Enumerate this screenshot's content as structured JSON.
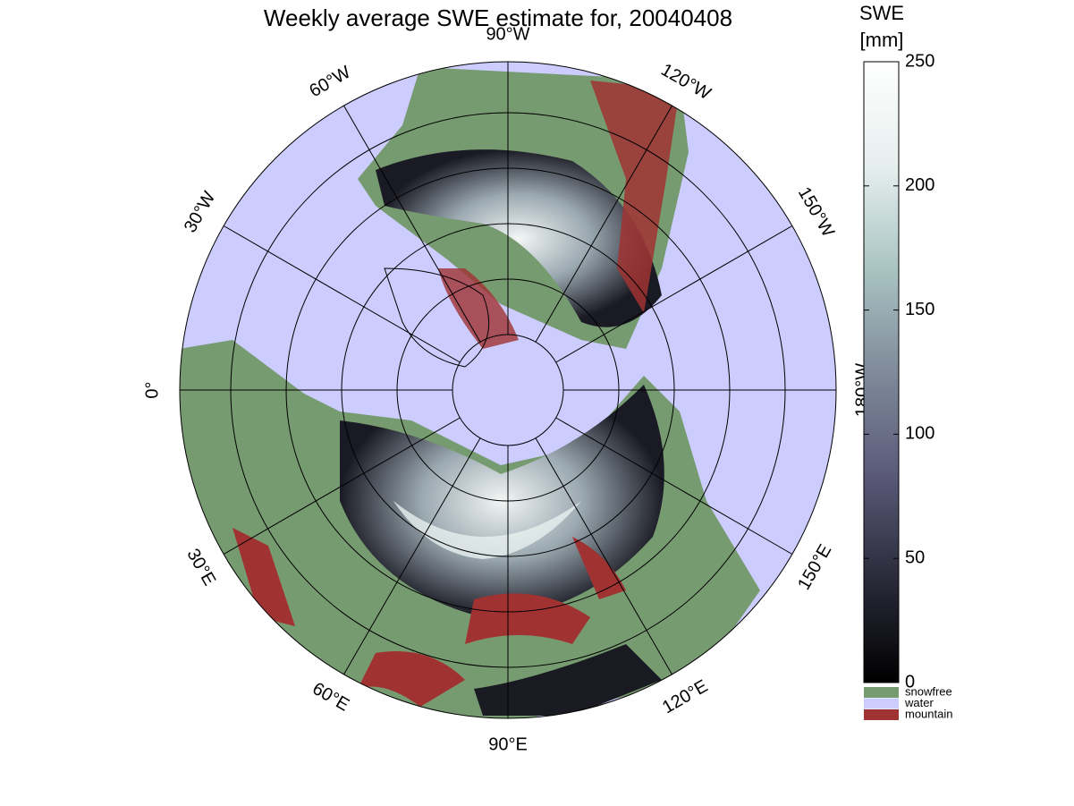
{
  "title": "Weekly average SWE estimate for, 20040408",
  "colorbar": {
    "label_lines": [
      "SWE",
      "[mm]"
    ],
    "lim": [
      0,
      250
    ],
    "ticks": [
      0,
      50,
      100,
      150,
      200,
      250
    ],
    "colormap": [
      "#000000",
      "#2a2a3a",
      "#5a5a78",
      "#7f8a9a",
      "#a9c4c2",
      "#e6efee",
      "#ffffff"
    ]
  },
  "legend": [
    {
      "name": "snowfree",
      "color": "#779b70"
    },
    {
      "name": "water",
      "color": "#ccccff"
    },
    {
      "name": "mountain",
      "color": "#a03232"
    }
  ],
  "longitude_labels": [
    {
      "lon": -90,
      "label": "90°W"
    },
    {
      "lon": -120,
      "label": "120°W"
    },
    {
      "lon": -150,
      "label": "150°W"
    },
    {
      "lon": 180,
      "label": "180°W"
    },
    {
      "lon": 150,
      "label": "150°E"
    },
    {
      "lon": 120,
      "label": "120°E"
    },
    {
      "lon": 90,
      "label": "90°E"
    },
    {
      "lon": 60,
      "label": "60°E"
    },
    {
      "lon": 30,
      "label": "30°E"
    },
    {
      "lon": 0,
      "label": "0°"
    },
    {
      "lon": -30,
      "label": "30°W"
    },
    {
      "lon": -60,
      "label": "60°W"
    }
  ]
}
